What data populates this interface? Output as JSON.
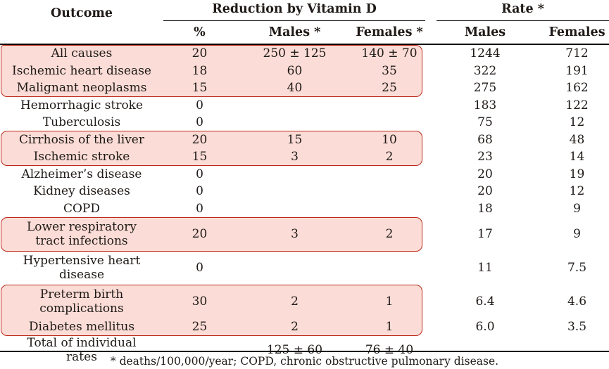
{
  "colors": {
    "highlight_fill": "#fbdcd6",
    "highlight_border": "#bb2a1b",
    "text": "#1f1a17"
  },
  "header": {
    "outcome": "Outcome",
    "group_vitamin_d": "Reduction by Vitamin D",
    "group_rate": "Rate *",
    "sub": {
      "pct": "%",
      "males_star": "Males *",
      "females_star": "Females *",
      "males": "Males",
      "females": "Females"
    }
  },
  "rows": [
    {
      "outcome": "All causes",
      "pct": "20",
      "males": "250 ± 125",
      "females": "140 ± 70",
      "rate_males": "1244",
      "rate_females": "712",
      "highlighted": true
    },
    {
      "outcome": "Ischemic heart disease",
      "pct": "18",
      "males": "60",
      "females": "35",
      "rate_males": "322",
      "rate_females": "191",
      "highlighted": true
    },
    {
      "outcome": "Malignant neoplasms",
      "pct": "15",
      "males": "40",
      "females": "25",
      "rate_males": "275",
      "rate_females": "162",
      "highlighted": true
    },
    {
      "outcome": "Hemorrhagic stroke",
      "pct": "0",
      "males": "",
      "females": "",
      "rate_males": "183",
      "rate_females": "122",
      "highlighted": false
    },
    {
      "outcome": "Tuberculosis",
      "pct": "0",
      "males": "",
      "females": "",
      "rate_males": "75",
      "rate_females": "12",
      "highlighted": false
    },
    {
      "outcome": "Cirrhosis of the liver",
      "pct": "20",
      "males": "15",
      "females": "10",
      "rate_males": "68",
      "rate_females": "48",
      "highlighted": true
    },
    {
      "outcome": "Ischemic stroke",
      "pct": "15",
      "males": "3",
      "females": "2",
      "rate_males": "23",
      "rate_females": "14",
      "highlighted": true
    },
    {
      "outcome": "Alzheimer’s disease",
      "pct": "0",
      "males": "",
      "females": "",
      "rate_males": "20",
      "rate_females": "19",
      "highlighted": false
    },
    {
      "outcome": "Kidney diseases",
      "pct": "0",
      "males": "",
      "females": "",
      "rate_males": "20",
      "rate_females": "12",
      "highlighted": false
    },
    {
      "outcome": "COPD",
      "pct": "0",
      "males": "",
      "females": "",
      "rate_males": "18",
      "rate_females": "9",
      "highlighted": false
    },
    {
      "outcome": "Lower respiratory tract infections",
      "pct": "20",
      "males": "3",
      "females": "2",
      "rate_males": "17",
      "rate_females": "9",
      "highlighted": true
    },
    {
      "outcome": "Hypertensive heart disease",
      "pct": "0",
      "males": "",
      "females": "",
      "rate_males": "11",
      "rate_females": "7.5",
      "highlighted": false
    },
    {
      "outcome": "Preterm birth complications",
      "pct": "30",
      "males": "2",
      "females": "1",
      "rate_males": "6.4",
      "rate_females": "4.6",
      "highlighted": true
    },
    {
      "outcome": "Diabetes mellitus",
      "pct": "25",
      "males": "2",
      "females": "1",
      "rate_males": "6.0",
      "rate_females": "3.5",
      "highlighted": true
    }
  ],
  "total_row": {
    "label": "Total of individual rates",
    "males": "125 ± 60",
    "females": "76 ± 40"
  },
  "footnote": "*  deaths/100,000/year; COPD, chronic obstructive pulmonary disease."
}
